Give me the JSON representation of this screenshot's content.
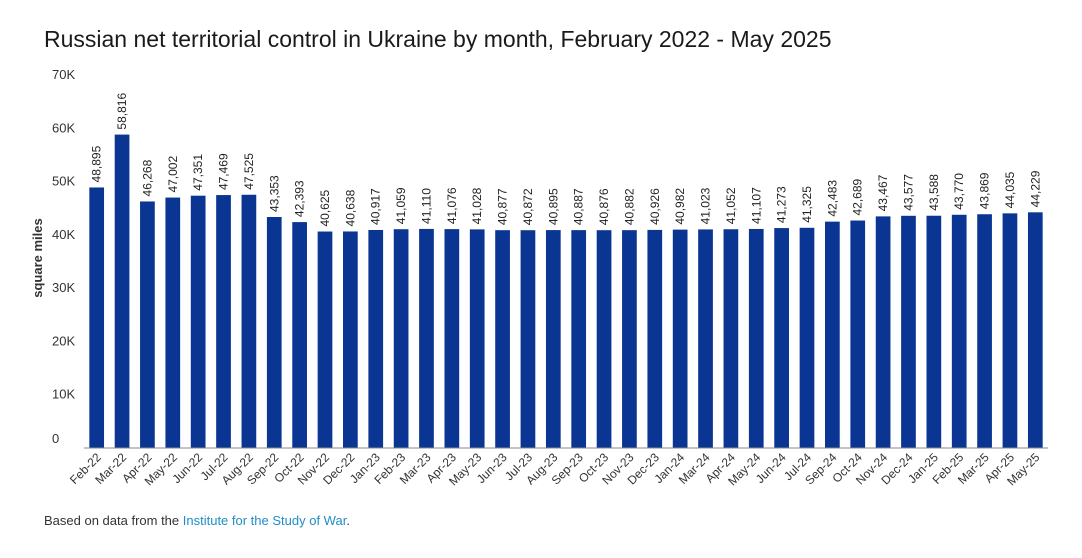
{
  "chart_data": {
    "type": "bar",
    "title": "Russian net territorial control in Ukraine by month, February 2022 - May 2025",
    "ylabel": "square miles",
    "xlabel": "",
    "ylim": [
      0,
      70000
    ],
    "yticks": [
      0,
      10000,
      20000,
      30000,
      40000,
      50000,
      60000,
      70000
    ],
    "ytick_labels": [
      "0",
      "10K",
      "20K",
      "30K",
      "40K",
      "50K",
      "60K",
      "70K"
    ],
    "grid": false,
    "bar_color": "#0a3592",
    "categories": [
      "Feb-22",
      "Mar-22",
      "Apr-22",
      "May-22",
      "Jun-22",
      "Jul-22",
      "Aug-22",
      "Sep-22",
      "Oct-22",
      "Nov-22",
      "Dec-22",
      "Jan-23",
      "Feb-23",
      "Mar-23",
      "Apr-23",
      "May-23",
      "Jun-23",
      "Jul-23",
      "Aug-23",
      "Sep-23",
      "Oct-23",
      "Nov-23",
      "Dec-23",
      "Jan-24",
      "Mar-24",
      "Apr-24",
      "May-24",
      "Jun-24",
      "Jul-24",
      "Sep-24",
      "Oct-24",
      "Nov-24",
      "Dec-24",
      "Jan-25",
      "Feb-25",
      "Mar-25",
      "Apr-25",
      "May-25"
    ],
    "values": [
      48895,
      58816,
      46268,
      47002,
      47351,
      47469,
      47525,
      43353,
      42393,
      40625,
      40638,
      40917,
      41059,
      41110,
      41076,
      41028,
      40877,
      40872,
      40895,
      40887,
      40876,
      40882,
      40926,
      40982,
      41023,
      41052,
      41107,
      41273,
      41325,
      42483,
      42689,
      43467,
      43577,
      43588,
      43770,
      43869,
      44035,
      44229
    ],
    "value_labels": [
      "48,895",
      "58,816",
      "46,268",
      "47,002",
      "47,351",
      "47,469",
      "47,525",
      "43,353",
      "42,393",
      "40,625",
      "40,638",
      "40,917",
      "41,059",
      "41,110",
      "41,076",
      "41,028",
      "40,877",
      "40,872",
      "40,895",
      "40,887",
      "40,876",
      "40,882",
      "40,926",
      "40,982",
      "41,023",
      "41,052",
      "41,107",
      "41,273",
      "41,325",
      "42,483",
      "42,689",
      "43,467",
      "43,577",
      "43,588",
      "43,770",
      "43,869",
      "44,035",
      "44,229"
    ]
  },
  "footer": {
    "text": "Based on data from the ",
    "link": "Institute for the Study of War",
    "suffix": "."
  }
}
